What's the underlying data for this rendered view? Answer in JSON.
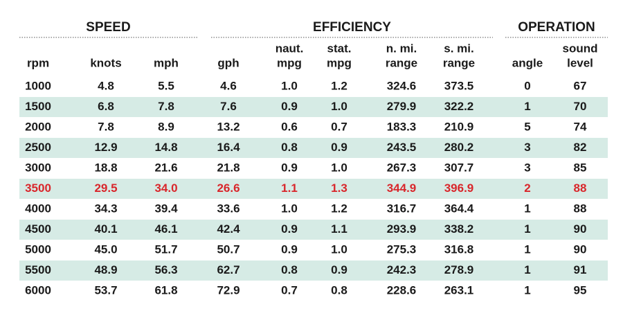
{
  "groups": [
    {
      "title": "SPEED"
    },
    {
      "title": "EFFICIENCY"
    },
    {
      "title": "OPERATION"
    }
  ],
  "columns": [
    "rpm",
    "knots",
    "mph",
    "gph",
    [
      "naut.",
      "mpg"
    ],
    [
      "stat.",
      "mpg"
    ],
    [
      "n. mi.",
      "range"
    ],
    [
      "s. mi.",
      "range"
    ],
    "angle",
    [
      "sound",
      "level"
    ]
  ],
  "rows": [
    {
      "cells": [
        "1000",
        "4.8",
        "5.5",
        "4.6",
        "1.0",
        "1.2",
        "324.6",
        "373.5",
        "0",
        "67"
      ]
    },
    {
      "cells": [
        "1500",
        "6.8",
        "7.8",
        "7.6",
        "0.9",
        "1.0",
        "279.9",
        "322.2",
        "1",
        "70"
      ]
    },
    {
      "cells": [
        "2000",
        "7.8",
        "8.9",
        "13.2",
        "0.6",
        "0.7",
        "183.3",
        "210.9",
        "5",
        "74"
      ]
    },
    {
      "cells": [
        "2500",
        "12.9",
        "14.8",
        "16.4",
        "0.8",
        "0.9",
        "243.5",
        "280.2",
        "3",
        "82"
      ]
    },
    {
      "cells": [
        "3000",
        "18.8",
        "21.6",
        "21.8",
        "0.9",
        "1.0",
        "267.3",
        "307.7",
        "3",
        "85"
      ]
    },
    {
      "cells": [
        "3500",
        "29.5",
        "34.0",
        "26.6",
        "1.1",
        "1.3",
        "344.9",
        "396.9",
        "2",
        "88"
      ],
      "color": "#d9262b"
    },
    {
      "cells": [
        "4000",
        "34.3",
        "39.4",
        "33.6",
        "1.0",
        "1.2",
        "316.7",
        "364.4",
        "1",
        "88"
      ]
    },
    {
      "cells": [
        "4500",
        "40.1",
        "46.1",
        "42.4",
        "0.9",
        "1.1",
        "293.9",
        "338.2",
        "1",
        "90"
      ]
    },
    {
      "cells": [
        "5000",
        "45.0",
        "51.7",
        "50.7",
        "0.9",
        "1.0",
        "275.3",
        "316.8",
        "1",
        "90"
      ]
    },
    {
      "cells": [
        "5500",
        "48.9",
        "56.3",
        "62.7",
        "0.8",
        "0.9",
        "242.3",
        "278.9",
        "1",
        "91"
      ]
    },
    {
      "cells": [
        "6000",
        "53.7",
        "61.8",
        "72.9",
        "0.7",
        "0.8",
        "228.6",
        "263.1",
        "1",
        "95"
      ]
    }
  ]
}
